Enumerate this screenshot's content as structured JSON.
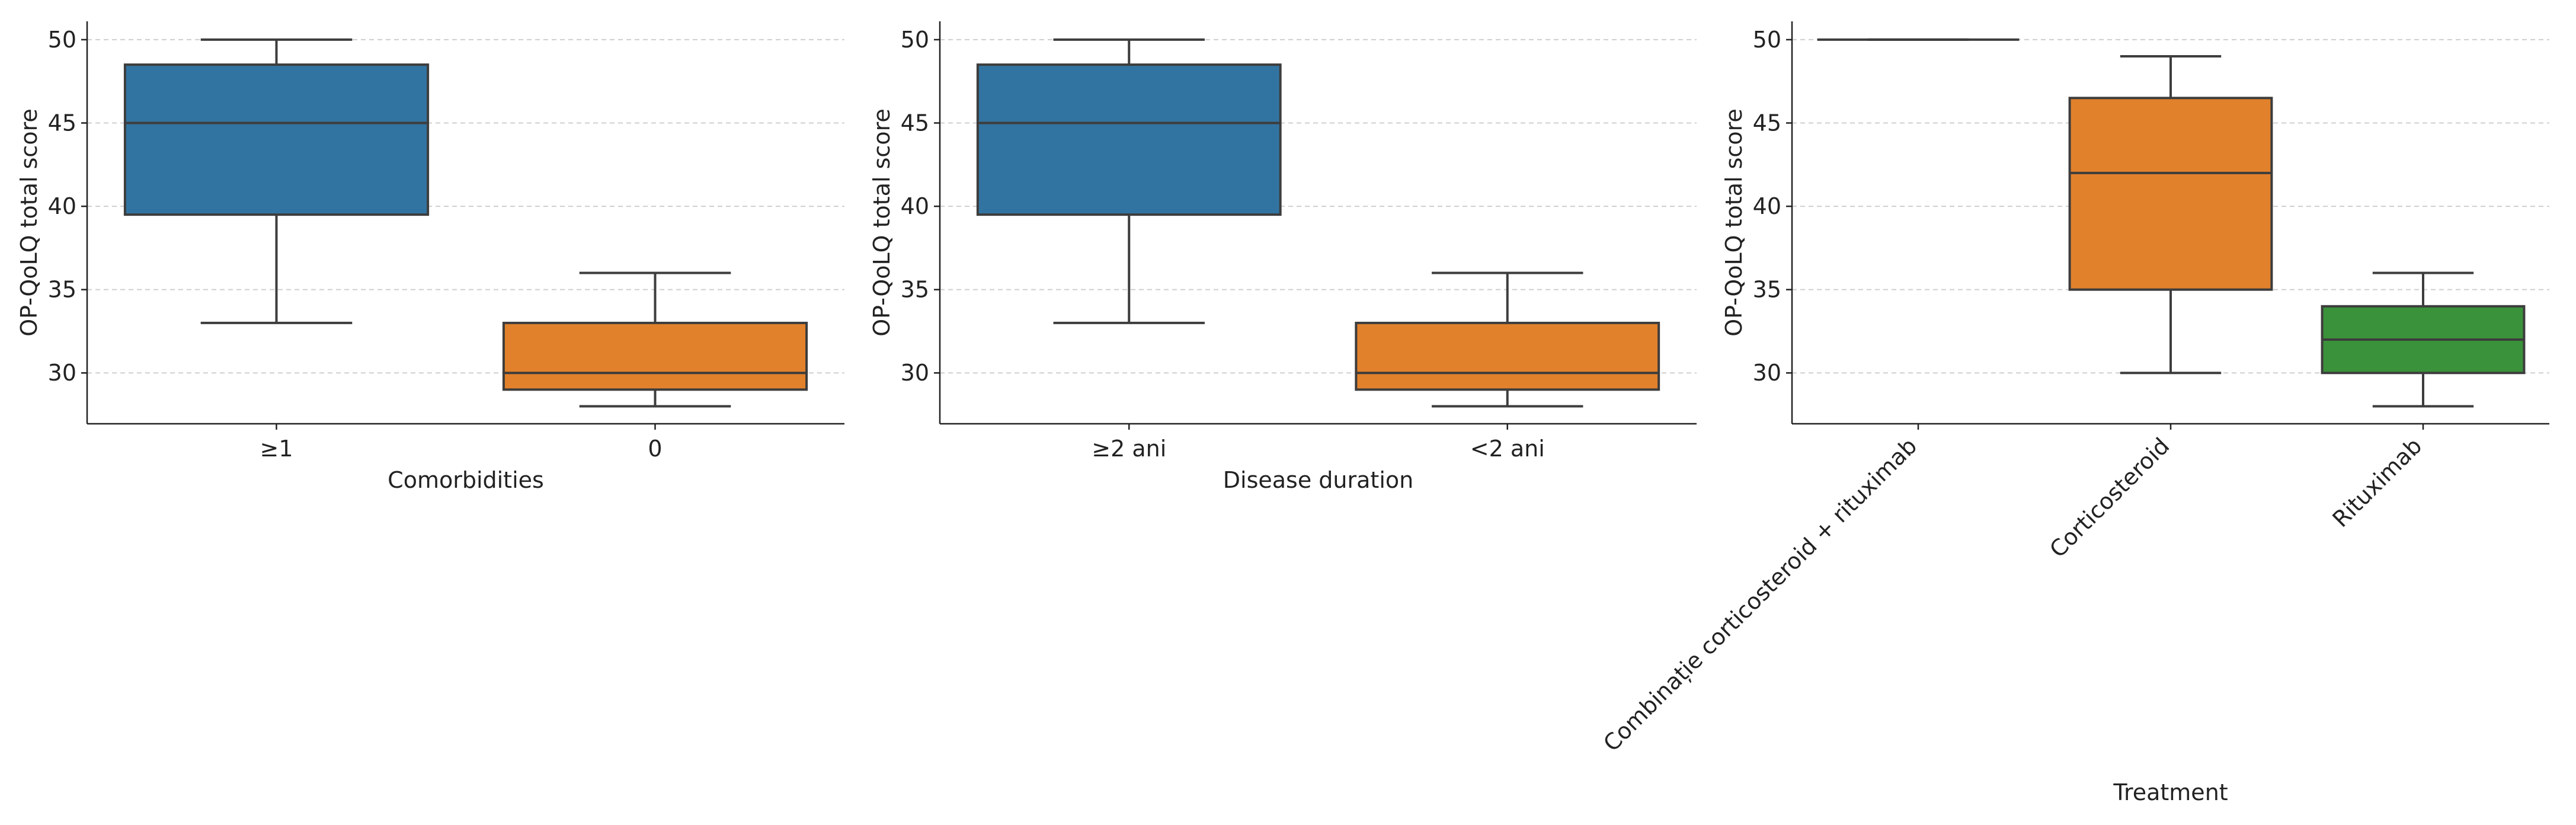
{
  "chart_data": [
    {
      "type": "box",
      "x_label": "Comorbidities",
      "y_label": "OP-QoLQ total score",
      "categories": [
        "≥1",
        "0"
      ],
      "colors": [
        "#3274a1",
        "#e1812c"
      ],
      "whisker_low": [
        33,
        28
      ],
      "q1": [
        39.5,
        29
      ],
      "median": [
        45,
        30
      ],
      "q3": [
        48.5,
        33
      ],
      "whisker_high": [
        50,
        36
      ],
      "ylim": [
        26.95,
        51.1
      ],
      "yticks": [
        30,
        35,
        40,
        45,
        50
      ],
      "grid": true,
      "rotate_x_labels": false
    },
    {
      "type": "box",
      "x_label": "Disease duration",
      "y_label": "OP-QoLQ total score",
      "categories": [
        "≥2 ani",
        "<2 ani"
      ],
      "colors": [
        "#3274a1",
        "#e1812c"
      ],
      "whisker_low": [
        33,
        28
      ],
      "q1": [
        39.5,
        29
      ],
      "median": [
        45,
        30
      ],
      "q3": [
        48.5,
        33
      ],
      "whisker_high": [
        50,
        36
      ],
      "ylim": [
        26.95,
        51.1
      ],
      "yticks": [
        30,
        35,
        40,
        45,
        50
      ],
      "grid": true,
      "rotate_x_labels": false
    },
    {
      "type": "box",
      "x_label": "Treatment",
      "y_label": "OP-QoLQ total score",
      "categories": [
        "Combinație corticosteroid + rituximab",
        "Corticosteroid",
        "Rituximab"
      ],
      "colors": [
        "#3274a1",
        "#e1812c",
        "#3a923a"
      ],
      "whisker_low": [
        50,
        30,
        28
      ],
      "q1": [
        50,
        35,
        30
      ],
      "median": [
        50,
        42,
        32
      ],
      "q3": [
        50,
        46.5,
        34
      ],
      "whisker_high": [
        50,
        49,
        36
      ],
      "ylim": [
        26.95,
        51.1
      ],
      "yticks": [
        30,
        35,
        40,
        45,
        50
      ],
      "grid": true,
      "rotate_x_labels": true
    }
  ]
}
